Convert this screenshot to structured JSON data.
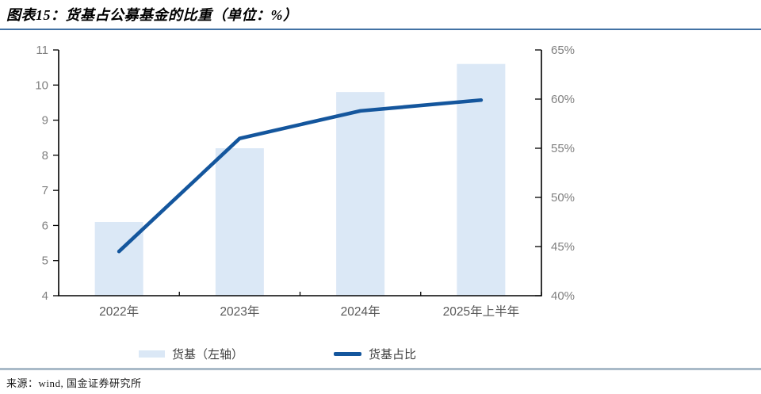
{
  "title": "图表15：货基占公募基金的比重（单位：%）",
  "source": "来源：wind, 国金证券研究所",
  "colors": {
    "bar_fill": "#dbe8f6",
    "line": "#14569d",
    "axis": "#000000",
    "axis_tick_label": "#7f7f7f",
    "x_tick_label": "#595959",
    "title_rule": "#4272a4",
    "footer_rule": "#a9bac8",
    "legend_text": "#3f3f3f"
  },
  "legend": {
    "items": [
      {
        "label": "货基（左轴）",
        "swatch": "bar-swatch"
      },
      {
        "label": "货基占比",
        "swatch": "line-swatch"
      }
    ]
  },
  "chart_data": {
    "type": "bar",
    "title": "图表15：货基占公募基金的比重（单位：%）",
    "categories": [
      "2022年",
      "2023年",
      "2024年",
      "2025年上半年"
    ],
    "series": [
      {
        "name": "货基（左轴）",
        "type": "bar",
        "axis": "left",
        "values": [
          6.1,
          8.2,
          9.8,
          10.6
        ]
      },
      {
        "name": "货基占比",
        "type": "line",
        "axis": "right",
        "values": [
          44.5,
          56.0,
          58.8,
          59.9
        ]
      }
    ],
    "left_axis": {
      "min": 4,
      "max": 11,
      "step": 1,
      "tick_labels": [
        "4",
        "5",
        "6",
        "7",
        "8",
        "9",
        "10",
        "11"
      ]
    },
    "right_axis": {
      "min": 40,
      "max": 65,
      "step": 5,
      "tick_labels": [
        "40%",
        "45%",
        "50%",
        "55%",
        "60%",
        "65%"
      ]
    },
    "grid": false,
    "legend_position": "bottom"
  }
}
